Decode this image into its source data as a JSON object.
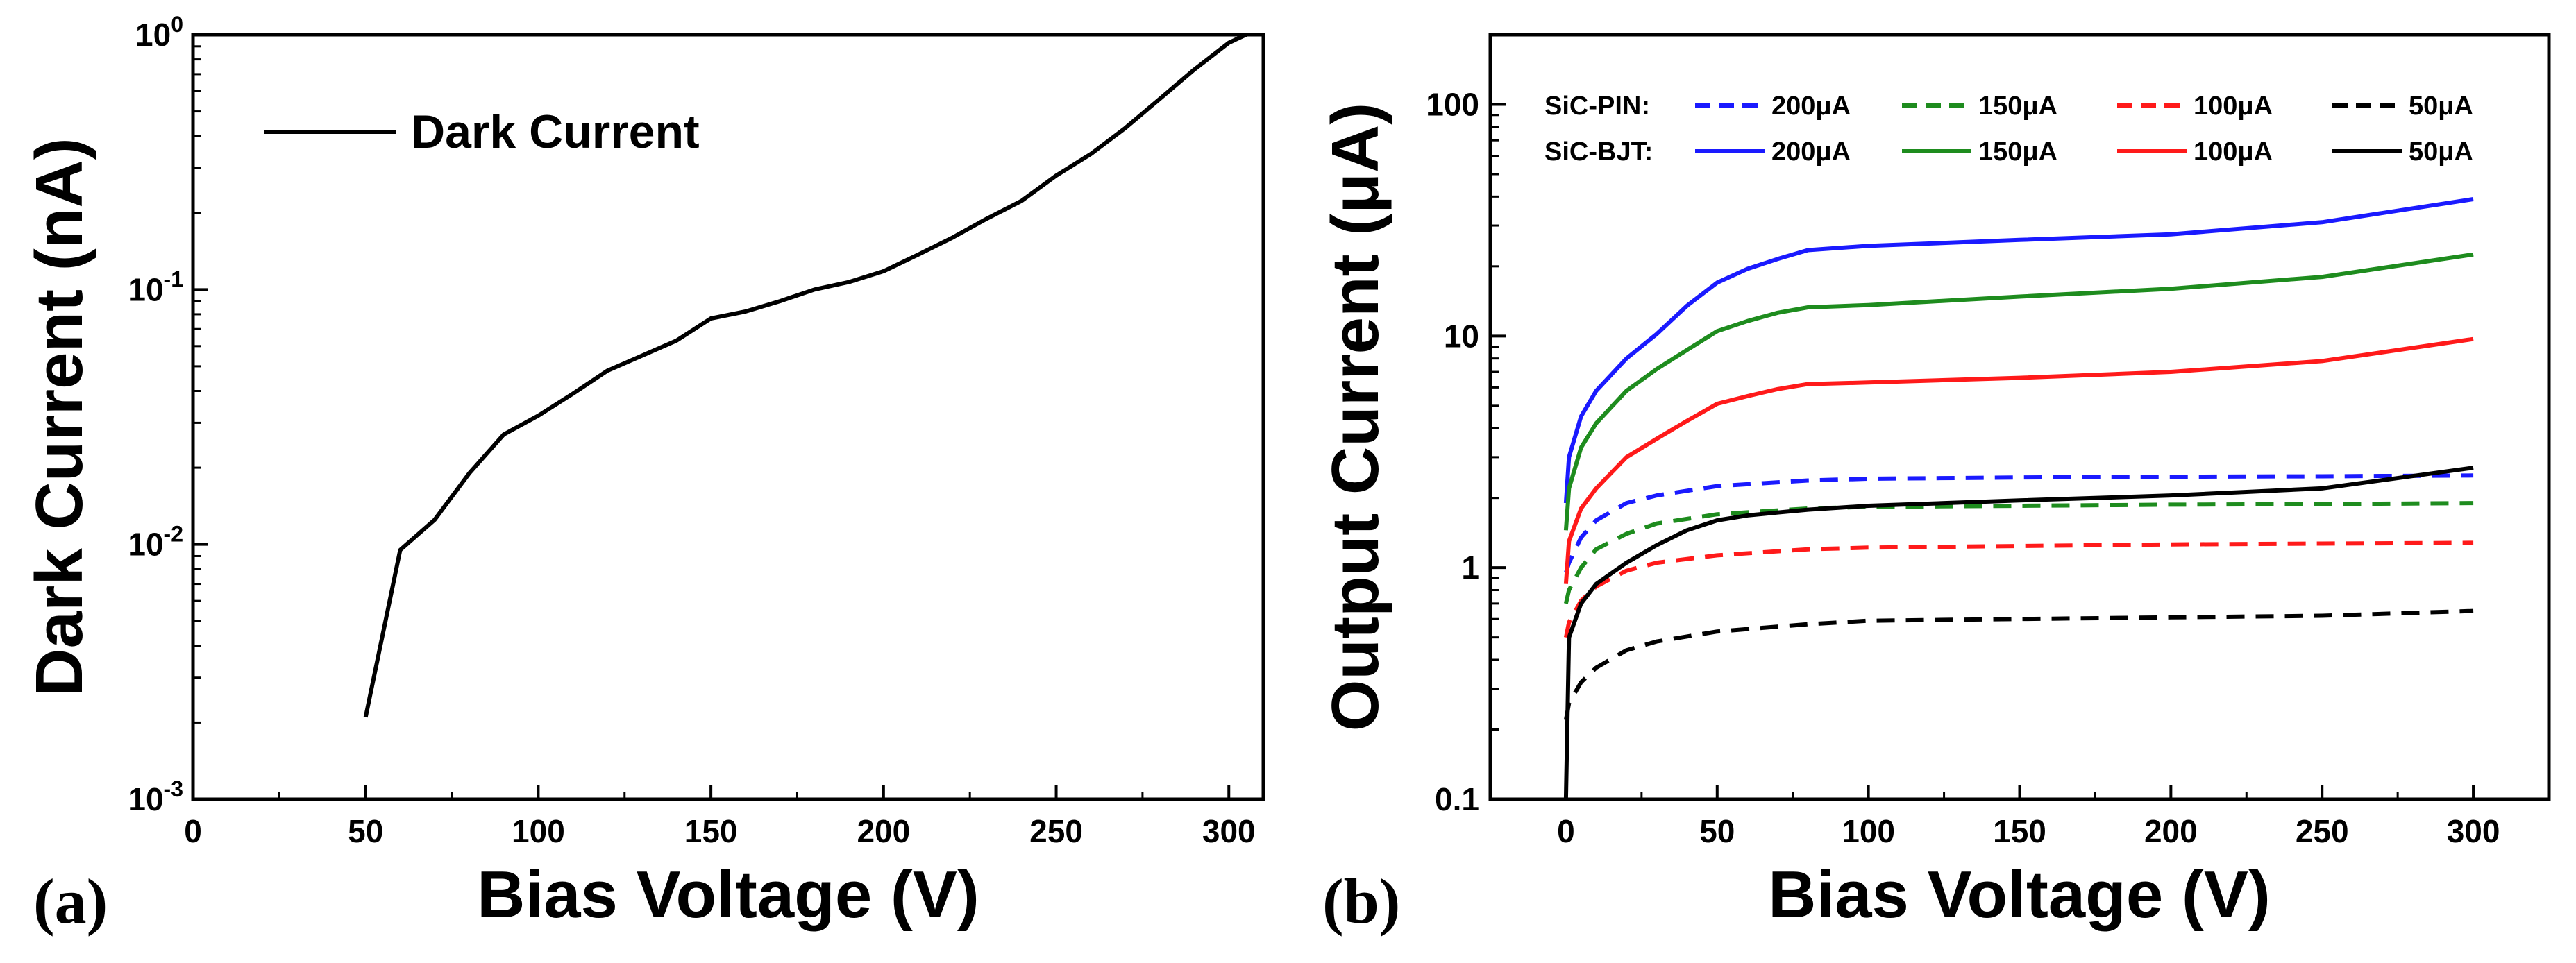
{
  "chart_data": [
    {
      "panel": "(a)",
      "type": "line",
      "title": "",
      "xlabel": "Bias Voltage (V)",
      "ylabel": "Dark Current (nA)",
      "yscale": "log",
      "xlim": [
        0,
        310
      ],
      "ylim": [
        0.001,
        1
      ],
      "xticks": [
        0,
        50,
        100,
        150,
        200,
        250,
        300
      ],
      "xtick_labels": [
        "0",
        "50",
        "100",
        "150",
        "200",
        "250",
        "300"
      ],
      "yticks": [
        0.001,
        0.01,
        0.1,
        1
      ],
      "ytick_labels": [
        {
          "base": "10",
          "exp": "-3"
        },
        {
          "base": "10",
          "exp": "-2"
        },
        {
          "base": "10",
          "exp": "-1"
        },
        {
          "base": "10",
          "exp": "0"
        }
      ],
      "legend_position": "top-left",
      "series": [
        {
          "name": "Dark Current",
          "color": "#000000",
          "dash": "solid",
          "x": [
            50,
            60,
            70,
            80,
            90,
            100,
            110,
            120,
            130,
            140,
            150,
            160,
            170,
            180,
            190,
            200,
            210,
            220,
            230,
            240,
            250,
            260,
            270,
            280,
            290,
            300,
            305
          ],
          "y": [
            0.0021,
            0.0095,
            0.0125,
            0.019,
            0.027,
            0.032,
            0.039,
            0.048,
            0.055,
            0.063,
            0.077,
            0.082,
            0.09,
            0.1,
            0.107,
            0.118,
            0.137,
            0.16,
            0.19,
            0.223,
            0.28,
            0.34,
            0.43,
            0.56,
            0.73,
            0.93,
            1.0
          ]
        }
      ]
    },
    {
      "panel": "(b)",
      "type": "line",
      "title": "",
      "xlabel": "Bias Voltage (V)",
      "ylabel": "Output Current (μA)",
      "yscale": "log",
      "xlim": [
        -25,
        325
      ],
      "ylim": [
        0.1,
        200
      ],
      "xticks": [
        0,
        50,
        100,
        150,
        200,
        250,
        300
      ],
      "xtick_labels": [
        "0",
        "50",
        "100",
        "150",
        "200",
        "250",
        "300"
      ],
      "yticks": [
        0.1,
        1,
        10,
        100
      ],
      "ytick_labels": [
        "0.1",
        "1",
        "10",
        "100"
      ],
      "legend_position": "top",
      "legend_rows": [
        {
          "label": "SiC-PIN:",
          "dash": "dashed",
          "entries": [
            "200μA",
            "150μA",
            "100μA",
            "50μA"
          ]
        },
        {
          "label": "SiC-BJT:",
          "dash": "solid",
          "entries": [
            "200μA",
            "150μA",
            "100μA",
            "50μA"
          ]
        }
      ],
      "series": [
        {
          "name": "SiC-PIN 200μA",
          "color": "#1a1aff",
          "dash": "dashed",
          "x": [
            0,
            1,
            5,
            10,
            20,
            30,
            50,
            80,
            100,
            150,
            200,
            250,
            300
          ],
          "y": [
            0.95,
            1.05,
            1.35,
            1.6,
            1.9,
            2.05,
            2.25,
            2.38,
            2.42,
            2.45,
            2.47,
            2.48,
            2.5
          ]
        },
        {
          "name": "SiC-PIN 150μA",
          "color": "#1e8c1e",
          "dash": "dashed",
          "x": [
            0,
            1,
            5,
            10,
            20,
            30,
            50,
            80,
            100,
            150,
            200,
            250,
            300
          ],
          "y": [
            0.7,
            0.8,
            1.0,
            1.2,
            1.4,
            1.55,
            1.7,
            1.8,
            1.83,
            1.85,
            1.87,
            1.88,
            1.9
          ]
        },
        {
          "name": "SiC-PIN 100μA",
          "color": "#ff1a1a",
          "dash": "dashed",
          "x": [
            0,
            1,
            5,
            10,
            20,
            30,
            50,
            80,
            100,
            150,
            200,
            250,
            300
          ],
          "y": [
            0.5,
            0.58,
            0.72,
            0.83,
            0.97,
            1.05,
            1.13,
            1.2,
            1.22,
            1.24,
            1.26,
            1.27,
            1.28
          ]
        },
        {
          "name": "SiC-PIN 50μA",
          "color": "#000000",
          "dash": "dashed",
          "x": [
            0,
            1,
            5,
            10,
            20,
            30,
            50,
            80,
            100,
            150,
            200,
            250,
            300
          ],
          "y": [
            0.22,
            0.26,
            0.32,
            0.37,
            0.44,
            0.48,
            0.53,
            0.57,
            0.59,
            0.6,
            0.61,
            0.62,
            0.65
          ]
        },
        {
          "name": "SiC-BJT 200μA",
          "color": "#1a1aff",
          "dash": "solid",
          "x": [
            0,
            1,
            5,
            10,
            20,
            30,
            40,
            50,
            60,
            70,
            80,
            100,
            150,
            200,
            250,
            300
          ],
          "y": [
            1.9,
            3.0,
            4.5,
            5.8,
            8.0,
            10.2,
            13.5,
            17.0,
            19.5,
            21.5,
            23.5,
            24.5,
            26.0,
            27.5,
            31.0,
            39.0
          ]
        },
        {
          "name": "SiC-BJT 150μA",
          "color": "#1e8c1e",
          "dash": "solid",
          "x": [
            0,
            1,
            5,
            10,
            20,
            30,
            40,
            50,
            60,
            70,
            80,
            100,
            150,
            200,
            250,
            300
          ],
          "y": [
            1.45,
            2.2,
            3.3,
            4.2,
            5.8,
            7.2,
            8.7,
            10.5,
            11.6,
            12.6,
            13.3,
            13.6,
            14.8,
            16.0,
            18.0,
            22.5
          ]
        },
        {
          "name": "SiC-BJT 100μA",
          "color": "#ff1a1a",
          "dash": "solid",
          "x": [
            0,
            1,
            5,
            10,
            20,
            30,
            40,
            50,
            60,
            70,
            80,
            100,
            150,
            200,
            250,
            300
          ],
          "y": [
            0.85,
            1.3,
            1.8,
            2.2,
            3.0,
            3.6,
            4.3,
            5.1,
            5.5,
            5.9,
            6.2,
            6.3,
            6.6,
            7.0,
            7.8,
            9.7
          ]
        },
        {
          "name": "SiC-BJT 50μA",
          "color": "#000000",
          "dash": "solid",
          "x": [
            0,
            1,
            5,
            10,
            20,
            30,
            40,
            50,
            60,
            70,
            80,
            100,
            150,
            200,
            250,
            300
          ],
          "y": [
            0.1,
            0.5,
            0.7,
            0.85,
            1.05,
            1.25,
            1.45,
            1.6,
            1.68,
            1.73,
            1.78,
            1.85,
            1.95,
            2.05,
            2.2,
            2.7
          ]
        }
      ]
    }
  ]
}
